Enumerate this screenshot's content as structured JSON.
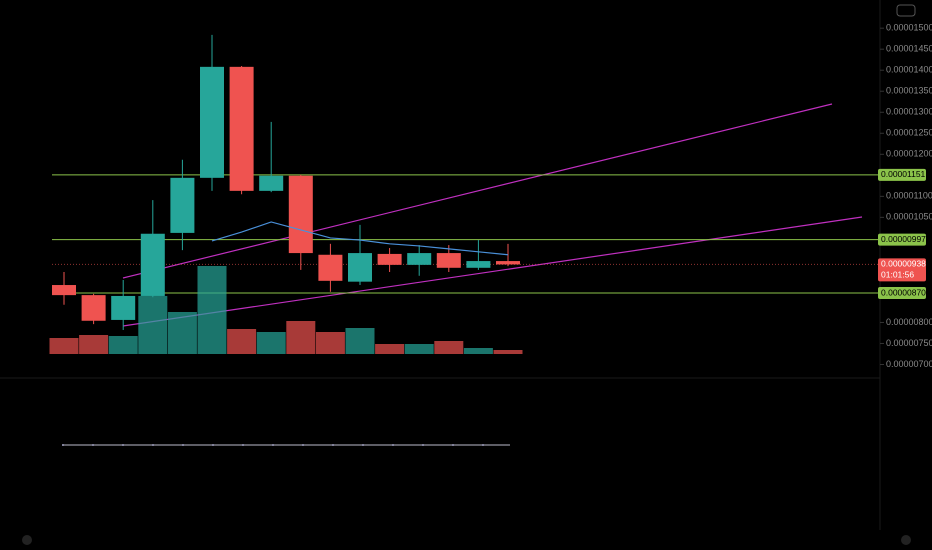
{
  "chart_data": {
    "type": "candlestick",
    "categories": [
      null,
      null,
      null,
      null,
      null,
      null,
      null,
      null,
      null,
      null,
      null,
      null,
      null,
      null,
      null,
      null
    ],
    "up_color": "#26a69a",
    "down_color": "#ef5350",
    "open": [
      8.89e-06,
      8.65e-06,
      8.06e-06,
      8.63e-06,
      1.013e-05,
      1.144e-05,
      1.408e-05,
      1.113e-05,
      1.149e-05,
      9.61e-06,
      8.97e-06,
      9.63e-06,
      9.37e-06,
      9.65e-06,
      9.3e-06,
      9.46e-06
    ],
    "high": [
      9.2e-06,
      8.68e-06,
      9.01e-06,
      1.091e-05,
      1.187e-05,
      1.484e-05,
      1.41e-05,
      1.277e-05,
      1.151e-05,
      9.87e-06,
      1.032e-05,
      9.77e-06,
      9.84e-06,
      9.84e-06,
      9.96e-06,
      9.87e-06
    ],
    "low": [
      8.42e-06,
      7.96e-06,
      7.82e-06,
      8.6e-06,
      9.72e-06,
      1.113e-05,
      1.105e-05,
      1.11e-05,
      9.25e-06,
      8.73e-06,
      8.89e-06,
      9.2e-06,
      9.11e-06,
      9.2e-06,
      9.25e-06,
      9.34e-06
    ],
    "close": [
      8.65e-06,
      8.04e-06,
      8.63e-06,
      1.011e-05,
      1.144e-05,
      1.408e-05,
      1.113e-05,
      1.149e-05,
      9.65e-06,
      8.99e-06,
      9.65e-06,
      9.37e-06,
      9.65e-06,
      9.3e-06,
      9.46e-06,
      9.38e-06
    ],
    "volume": [
      16,
      19,
      18,
      58,
      42,
      88,
      25,
      22,
      33,
      22,
      26,
      10,
      10,
      13,
      6,
      4
    ],
    "ema": {
      "color": "#4a90d9",
      "values": [
        null,
        null,
        null,
        null,
        null,
        9.94e-06,
        1.015e-05,
        1.039e-05,
        1.02e-05,
        1.001e-05,
        9.96e-06,
        9.87e-06,
        9.82e-06,
        9.75e-06,
        9.68e-06,
        9.61e-06
      ]
    },
    "ylim": [
      6.75e-06,
      1.567e-05
    ],
    "yticks": [
      {
        "value": 7e-06,
        "label": "0.00000700"
      },
      {
        "value": 7.5e-06,
        "label": "0.00000750"
      },
      {
        "value": 8e-06,
        "label": "0.00000800"
      },
      {
        "value": 1.05e-05,
        "label": "0.00001050"
      },
      {
        "value": 1.1e-05,
        "label": "0.00001100"
      },
      {
        "value": 1.2e-05,
        "label": "0.00001200"
      },
      {
        "value": 1.25e-05,
        "label": "0.00001250"
      },
      {
        "value": 1.3e-05,
        "label": "0.00001300"
      },
      {
        "value": 1.35e-05,
        "label": "0.00001350"
      },
      {
        "value": 1.4e-05,
        "label": "0.00001400"
      },
      {
        "value": 1.45e-05,
        "label": "0.00001450"
      },
      {
        "value": 1.5e-05,
        "label": "0.00001500"
      }
    ],
    "levels": [
      {
        "value": 1.151e-05,
        "label": "0.00001151",
        "color": "#8bc34a"
      },
      {
        "value": 9.97e-06,
        "label": "0.00000997",
        "color": "#8bc34a"
      },
      {
        "value": 8.7e-06,
        "label": "0.00000870",
        "color": "#8bc34a"
      }
    ],
    "last_price": {
      "value": 9.38e-06,
      "label": "0.00000938",
      "countdown": "01:01:56",
      "color": "#ef5350"
    }
  }
}
